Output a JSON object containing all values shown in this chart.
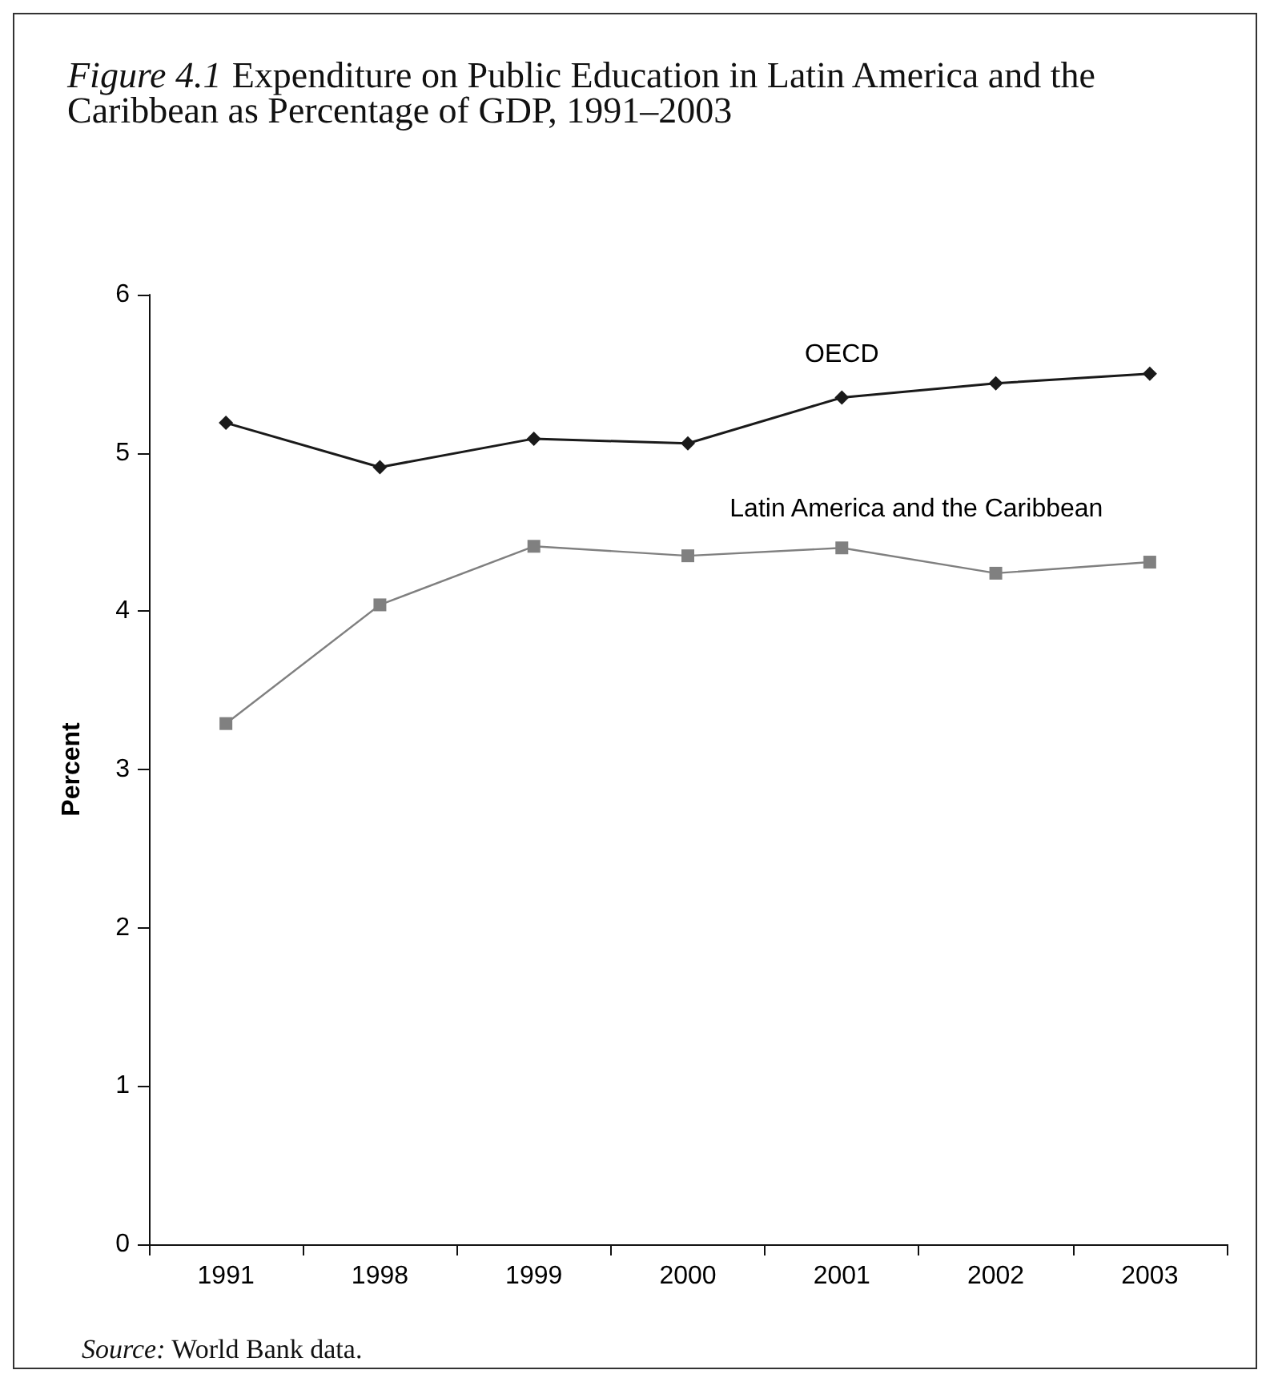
{
  "chart_data": {
    "type": "line",
    "title": "Figure 4.1 Expenditure on Public Education in Latin America and the Caribbean as Percentage of GDP, 1991–2003",
    "ylabel": "Percent",
    "categories": [
      "1991",
      "1998",
      "1999",
      "2000",
      "2001",
      "2002",
      "2003"
    ],
    "series": [
      {
        "name": "OECD",
        "color": "#1a1a1a",
        "marker": "diamond",
        "values": [
          5.19,
          4.91,
          5.09,
          5.06,
          5.35,
          5.44,
          5.5
        ]
      },
      {
        "name": "Latin America and the Caribbean",
        "color": "#808080",
        "marker": "square",
        "values": [
          3.29,
          4.04,
          4.41,
          4.35,
          4.4,
          4.24,
          4.31
        ]
      }
    ],
    "ylim": [
      0,
      6
    ],
    "yticks": [
      0,
      1,
      2,
      3,
      4,
      5,
      6
    ],
    "grid": false,
    "annotations": [
      "Source: World Bank data."
    ]
  }
}
